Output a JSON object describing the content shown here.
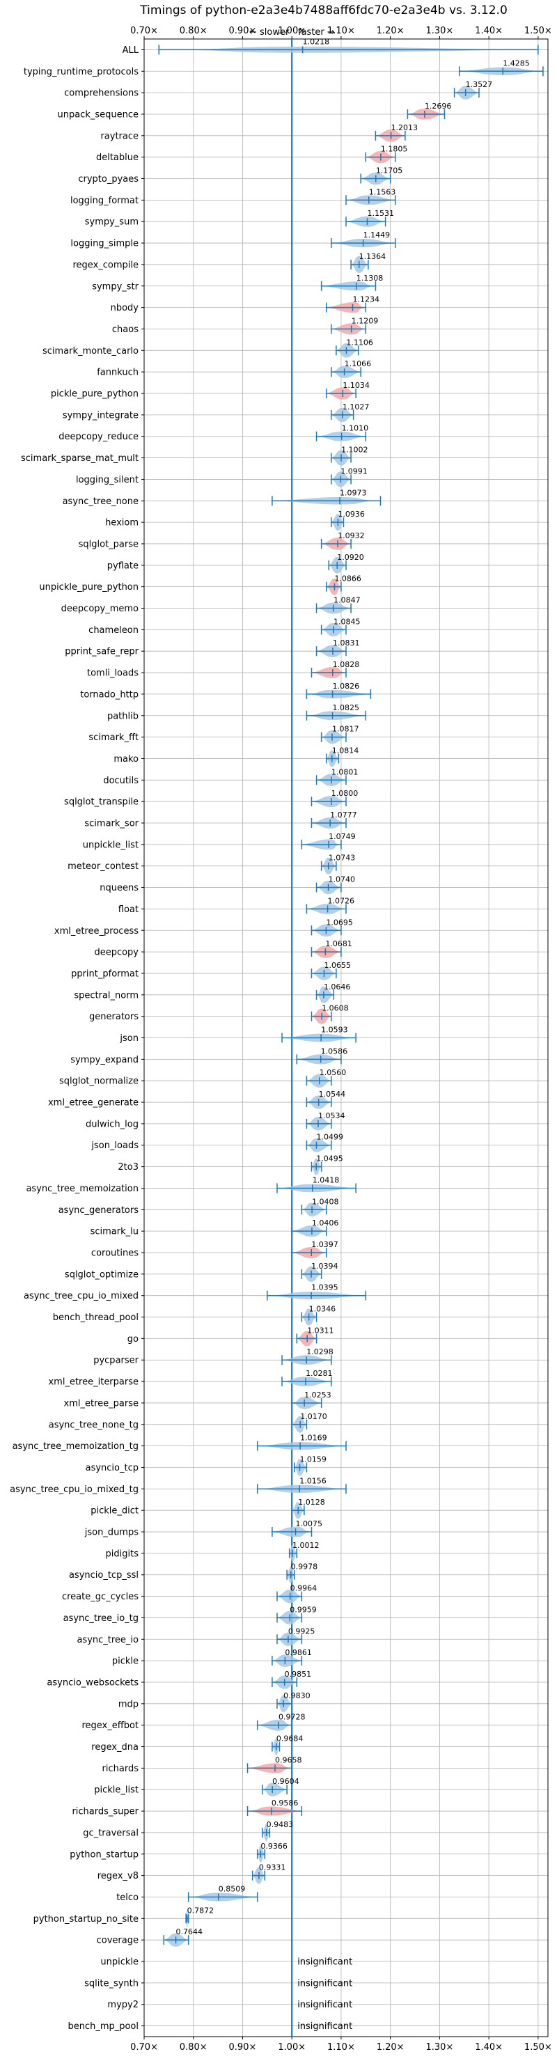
{
  "chart_data": {
    "type": "violin",
    "title": "Timings of python-e2a3e4b7488aff6fdc70-e2a3e4b vs. 3.12.0",
    "annotation_slower": "← slower",
    "annotation_faster": "faster →",
    "xlim": [
      0.7,
      1.52
    ],
    "xticks": [
      0.7,
      0.8,
      0.9,
      1.0,
      1.1,
      1.2,
      1.3,
      1.4,
      1.5
    ],
    "xtick_labels": [
      "0.70×",
      "0.80×",
      "0.90×",
      "1.00×",
      "1.10×",
      "1.20×",
      "1.30×",
      "1.40×",
      "1.50×"
    ],
    "reference_line": 1.0,
    "colors": {
      "violin_blue": "#a6c8e4",
      "violin_red": "#f4a7a8",
      "line_blue": "#1f77b4"
    },
    "insignificant_label": "insignificant",
    "benchmarks": [
      {
        "name": "ALL",
        "value": 1.0218,
        "label": "1.0218",
        "min": 0.73,
        "max": 1.5,
        "color": "blue"
      },
      {
        "name": "typing_runtime_protocols",
        "value": 1.4285,
        "label": "1.4285",
        "min": 1.34,
        "max": 1.51,
        "color": "blue"
      },
      {
        "name": "comprehensions",
        "value": 1.3527,
        "label": "1.3527",
        "min": 1.33,
        "max": 1.38,
        "color": "blue"
      },
      {
        "name": "unpack_sequence",
        "value": 1.2696,
        "label": "1.2696",
        "min": 1.235,
        "max": 1.31,
        "color": "red"
      },
      {
        "name": "raytrace",
        "value": 1.2013,
        "label": "1.2013",
        "min": 1.17,
        "max": 1.23,
        "color": "red"
      },
      {
        "name": "deltablue",
        "value": 1.1805,
        "label": "1.1805",
        "min": 1.15,
        "max": 1.21,
        "color": "red"
      },
      {
        "name": "crypto_pyaes",
        "value": 1.1705,
        "label": "1.1705",
        "min": 1.14,
        "max": 1.2,
        "color": "blue"
      },
      {
        "name": "logging_format",
        "value": 1.1563,
        "label": "1.1563",
        "min": 1.11,
        "max": 1.21,
        "color": "blue"
      },
      {
        "name": "sympy_sum",
        "value": 1.1531,
        "label": "1.1531",
        "min": 1.11,
        "max": 1.19,
        "color": "blue"
      },
      {
        "name": "logging_simple",
        "value": 1.1449,
        "label": "1.1449",
        "min": 1.08,
        "max": 1.21,
        "color": "blue"
      },
      {
        "name": "regex_compile",
        "value": 1.1364,
        "label": "1.1364",
        "min": 1.12,
        "max": 1.155,
        "color": "blue"
      },
      {
        "name": "sympy_str",
        "value": 1.1308,
        "label": "1.1308",
        "min": 1.06,
        "max": 1.17,
        "color": "blue"
      },
      {
        "name": "nbody",
        "value": 1.1234,
        "label": "1.1234",
        "min": 1.07,
        "max": 1.15,
        "color": "red"
      },
      {
        "name": "chaos",
        "value": 1.1209,
        "label": "1.1209",
        "min": 1.08,
        "max": 1.15,
        "color": "red"
      },
      {
        "name": "scimark_monte_carlo",
        "value": 1.1106,
        "label": "1.1106",
        "min": 1.09,
        "max": 1.135,
        "color": "blue"
      },
      {
        "name": "fannkuch",
        "value": 1.1066,
        "label": "1.1066",
        "min": 1.08,
        "max": 1.14,
        "color": "blue"
      },
      {
        "name": "pickle_pure_python",
        "value": 1.1034,
        "label": "1.1034",
        "min": 1.07,
        "max": 1.13,
        "color": "red"
      },
      {
        "name": "sympy_integrate",
        "value": 1.1027,
        "label": "1.1027",
        "min": 1.08,
        "max": 1.125,
        "color": "blue"
      },
      {
        "name": "deepcopy_reduce",
        "value": 1.101,
        "label": "1.1010",
        "min": 1.05,
        "max": 1.15,
        "color": "blue"
      },
      {
        "name": "scimark_sparse_mat_mult",
        "value": 1.1002,
        "label": "1.1002",
        "min": 1.08,
        "max": 1.12,
        "color": "blue"
      },
      {
        "name": "logging_silent",
        "value": 1.0991,
        "label": "1.0991",
        "min": 1.08,
        "max": 1.12,
        "color": "blue"
      },
      {
        "name": "async_tree_none",
        "value": 1.0973,
        "label": "1.0973",
        "min": 0.96,
        "max": 1.18,
        "color": "blue"
      },
      {
        "name": "hexiom",
        "value": 1.0936,
        "label": "1.0936",
        "min": 1.08,
        "max": 1.105,
        "color": "blue"
      },
      {
        "name": "sqlglot_parse",
        "value": 1.0932,
        "label": "1.0932",
        "min": 1.06,
        "max": 1.12,
        "color": "red"
      },
      {
        "name": "pyflate",
        "value": 1.092,
        "label": "1.0920",
        "min": 1.075,
        "max": 1.11,
        "color": "blue"
      },
      {
        "name": "unpickle_pure_python",
        "value": 1.0866,
        "label": "1.0866",
        "min": 1.07,
        "max": 1.1,
        "color": "red"
      },
      {
        "name": "deepcopy_memo",
        "value": 1.0847,
        "label": "1.0847",
        "min": 1.05,
        "max": 1.12,
        "color": "blue"
      },
      {
        "name": "chameleon",
        "value": 1.0845,
        "label": "1.0845",
        "min": 1.06,
        "max": 1.11,
        "color": "blue"
      },
      {
        "name": "pprint_safe_repr",
        "value": 1.0831,
        "label": "1.0831",
        "min": 1.05,
        "max": 1.11,
        "color": "blue"
      },
      {
        "name": "tomli_loads",
        "value": 1.0828,
        "label": "1.0828",
        "min": 1.04,
        "max": 1.11,
        "color": "red"
      },
      {
        "name": "tornado_http",
        "value": 1.0826,
        "label": "1.0826",
        "min": 1.03,
        "max": 1.16,
        "color": "blue"
      },
      {
        "name": "pathlib",
        "value": 1.0825,
        "label": "1.0825",
        "min": 1.03,
        "max": 1.15,
        "color": "blue"
      },
      {
        "name": "scimark_fft",
        "value": 1.0817,
        "label": "1.0817",
        "min": 1.06,
        "max": 1.11,
        "color": "blue"
      },
      {
        "name": "mako",
        "value": 1.0814,
        "label": "1.0814",
        "min": 1.07,
        "max": 1.095,
        "color": "blue"
      },
      {
        "name": "docutils",
        "value": 1.0801,
        "label": "1.0801",
        "min": 1.05,
        "max": 1.11,
        "color": "blue"
      },
      {
        "name": "sqlglot_transpile",
        "value": 1.08,
        "label": "1.0800",
        "min": 1.04,
        "max": 1.11,
        "color": "blue"
      },
      {
        "name": "scimark_sor",
        "value": 1.0777,
        "label": "1.0777",
        "min": 1.04,
        "max": 1.11,
        "color": "blue"
      },
      {
        "name": "unpickle_list",
        "value": 1.0749,
        "label": "1.0749",
        "min": 1.02,
        "max": 1.1,
        "color": "blue"
      },
      {
        "name": "meteor_contest",
        "value": 1.0743,
        "label": "1.0743",
        "min": 1.06,
        "max": 1.09,
        "color": "blue"
      },
      {
        "name": "nqueens",
        "value": 1.074,
        "label": "1.0740",
        "min": 1.05,
        "max": 1.1,
        "color": "blue"
      },
      {
        "name": "float",
        "value": 1.0726,
        "label": "1.0726",
        "min": 1.03,
        "max": 1.11,
        "color": "blue"
      },
      {
        "name": "xml_etree_process",
        "value": 1.0695,
        "label": "1.0695",
        "min": 1.04,
        "max": 1.1,
        "color": "blue"
      },
      {
        "name": "deepcopy",
        "value": 1.0681,
        "label": "1.0681",
        "min": 1.04,
        "max": 1.1,
        "color": "red"
      },
      {
        "name": "pprint_pformat",
        "value": 1.0655,
        "label": "1.0655",
        "min": 1.04,
        "max": 1.09,
        "color": "blue"
      },
      {
        "name": "spectral_norm",
        "value": 1.0646,
        "label": "1.0646",
        "min": 1.05,
        "max": 1.085,
        "color": "blue"
      },
      {
        "name": "generators",
        "value": 1.0608,
        "label": "1.0608",
        "min": 1.04,
        "max": 1.08,
        "color": "red"
      },
      {
        "name": "json",
        "value": 1.0593,
        "label": "1.0593",
        "min": 0.98,
        "max": 1.13,
        "color": "blue"
      },
      {
        "name": "sympy_expand",
        "value": 1.0586,
        "label": "1.0586",
        "min": 1.01,
        "max": 1.1,
        "color": "blue"
      },
      {
        "name": "sqlglot_normalize",
        "value": 1.056,
        "label": "1.0560",
        "min": 1.03,
        "max": 1.08,
        "color": "blue"
      },
      {
        "name": "xml_etree_generate",
        "value": 1.0544,
        "label": "1.0544",
        "min": 1.03,
        "max": 1.08,
        "color": "blue"
      },
      {
        "name": "dulwich_log",
        "value": 1.0534,
        "label": "1.0534",
        "min": 1.03,
        "max": 1.08,
        "color": "blue"
      },
      {
        "name": "json_loads",
        "value": 1.0499,
        "label": "1.0499",
        "min": 1.03,
        "max": 1.08,
        "color": "blue"
      },
      {
        "name": "2to3",
        "value": 1.0495,
        "label": "1.0495",
        "min": 1.04,
        "max": 1.06,
        "color": "blue"
      },
      {
        "name": "async_tree_memoization",
        "value": 1.0418,
        "label": "1.0418",
        "min": 0.97,
        "max": 1.13,
        "color": "blue"
      },
      {
        "name": "async_generators",
        "value": 1.0408,
        "label": "1.0408",
        "min": 1.02,
        "max": 1.07,
        "color": "blue"
      },
      {
        "name": "scimark_lu",
        "value": 1.0406,
        "label": "1.0406",
        "min": 1.0,
        "max": 1.07,
        "color": "blue"
      },
      {
        "name": "coroutines",
        "value": 1.0397,
        "label": "1.0397",
        "min": 1.0,
        "max": 1.07,
        "color": "red"
      },
      {
        "name": "sqlglot_optimize",
        "value": 1.0394,
        "label": "1.0394",
        "min": 1.02,
        "max": 1.06,
        "color": "blue"
      },
      {
        "name": "async_tree_cpu_io_mixed",
        "value": 1.0395,
        "label": "1.0395",
        "min": 0.95,
        "max": 1.15,
        "color": "blue"
      },
      {
        "name": "bench_thread_pool",
        "value": 1.0346,
        "label": "1.0346",
        "min": 1.02,
        "max": 1.05,
        "color": "blue"
      },
      {
        "name": "go",
        "value": 1.0311,
        "label": "1.0311",
        "min": 1.01,
        "max": 1.05,
        "color": "red"
      },
      {
        "name": "pycparser",
        "value": 1.0298,
        "label": "1.0298",
        "min": 0.98,
        "max": 1.08,
        "color": "blue"
      },
      {
        "name": "xml_etree_iterparse",
        "value": 1.0281,
        "label": "1.0281",
        "min": 0.98,
        "max": 1.08,
        "color": "blue"
      },
      {
        "name": "xml_etree_parse",
        "value": 1.0253,
        "label": "1.0253",
        "min": 1.0,
        "max": 1.06,
        "color": "blue"
      },
      {
        "name": "async_tree_none_tg",
        "value": 1.017,
        "label": "1.0170",
        "min": 1.0,
        "max": 1.03,
        "color": "blue"
      },
      {
        "name": "async_tree_memoization_tg",
        "value": 1.0169,
        "label": "1.0169",
        "min": 0.93,
        "max": 1.11,
        "color": "blue"
      },
      {
        "name": "asyncio_tcp",
        "value": 1.0159,
        "label": "1.0159",
        "min": 1.005,
        "max": 1.03,
        "color": "blue"
      },
      {
        "name": "async_tree_cpu_io_mixed_tg",
        "value": 1.0156,
        "label": "1.0156",
        "min": 0.93,
        "max": 1.11,
        "color": "blue"
      },
      {
        "name": "pickle_dict",
        "value": 1.0128,
        "label": "1.0128",
        "min": 1.0,
        "max": 1.025,
        "color": "blue"
      },
      {
        "name": "json_dumps",
        "value": 1.0075,
        "label": "1.0075",
        "min": 0.96,
        "max": 1.04,
        "color": "blue"
      },
      {
        "name": "pidigits",
        "value": 1.0012,
        "label": "1.0012",
        "min": 0.995,
        "max": 1.01,
        "color": "blue"
      },
      {
        "name": "asyncio_tcp_ssl",
        "value": 0.9978,
        "label": "0.9978",
        "min": 0.99,
        "max": 1.005,
        "color": "blue"
      },
      {
        "name": "create_gc_cycles",
        "value": 0.9964,
        "label": "0.9964",
        "min": 0.97,
        "max": 1.02,
        "color": "blue"
      },
      {
        "name": "async_tree_io_tg",
        "value": 0.9959,
        "label": "0.9959",
        "min": 0.97,
        "max": 1.02,
        "color": "blue"
      },
      {
        "name": "async_tree_io",
        "value": 0.9925,
        "label": "0.9925",
        "min": 0.97,
        "max": 1.02,
        "color": "blue"
      },
      {
        "name": "pickle",
        "value": 0.9861,
        "label": "0.9861",
        "min": 0.96,
        "max": 1.02,
        "color": "blue"
      },
      {
        "name": "asyncio_websockets",
        "value": 0.9851,
        "label": "0.9851",
        "min": 0.96,
        "max": 1.01,
        "color": "blue"
      },
      {
        "name": "mdp",
        "value": 0.983,
        "label": "0.9830",
        "min": 0.97,
        "max": 1.0,
        "color": "blue"
      },
      {
        "name": "regex_effbot",
        "value": 0.9728,
        "label": "0.9728",
        "min": 0.93,
        "max": 1.0,
        "color": "blue"
      },
      {
        "name": "regex_dna",
        "value": 0.9684,
        "label": "0.9684",
        "min": 0.96,
        "max": 0.975,
        "color": "blue"
      },
      {
        "name": "richards",
        "value": 0.9658,
        "label": "0.9658",
        "min": 0.91,
        "max": 1.0,
        "color": "red"
      },
      {
        "name": "pickle_list",
        "value": 0.9604,
        "label": "0.9604",
        "min": 0.94,
        "max": 0.99,
        "color": "blue"
      },
      {
        "name": "richards_super",
        "value": 0.9586,
        "label": "0.9586",
        "min": 0.91,
        "max": 1.02,
        "color": "red"
      },
      {
        "name": "gc_traversal",
        "value": 0.9483,
        "label": "0.9483",
        "min": 0.94,
        "max": 0.955,
        "color": "blue"
      },
      {
        "name": "python_startup",
        "value": 0.9366,
        "label": "0.9366",
        "min": 0.93,
        "max": 0.945,
        "color": "blue"
      },
      {
        "name": "regex_v8",
        "value": 0.9331,
        "label": "0.9331",
        "min": 0.92,
        "max": 0.945,
        "color": "blue"
      },
      {
        "name": "telco",
        "value": 0.8509,
        "label": "0.8509",
        "min": 0.79,
        "max": 0.93,
        "color": "blue"
      },
      {
        "name": "python_startup_no_site",
        "value": 0.7872,
        "label": "0.7872",
        "min": 0.785,
        "max": 0.79,
        "color": "blue"
      },
      {
        "name": "coverage",
        "value": 0.7644,
        "label": "0.7644",
        "min": 0.74,
        "max": 0.79,
        "color": "blue"
      },
      {
        "name": "unpickle",
        "insignificant": true
      },
      {
        "name": "sqlite_synth",
        "insignificant": true
      },
      {
        "name": "mypy2",
        "insignificant": true
      },
      {
        "name": "bench_mp_pool",
        "insignificant": true
      }
    ]
  }
}
